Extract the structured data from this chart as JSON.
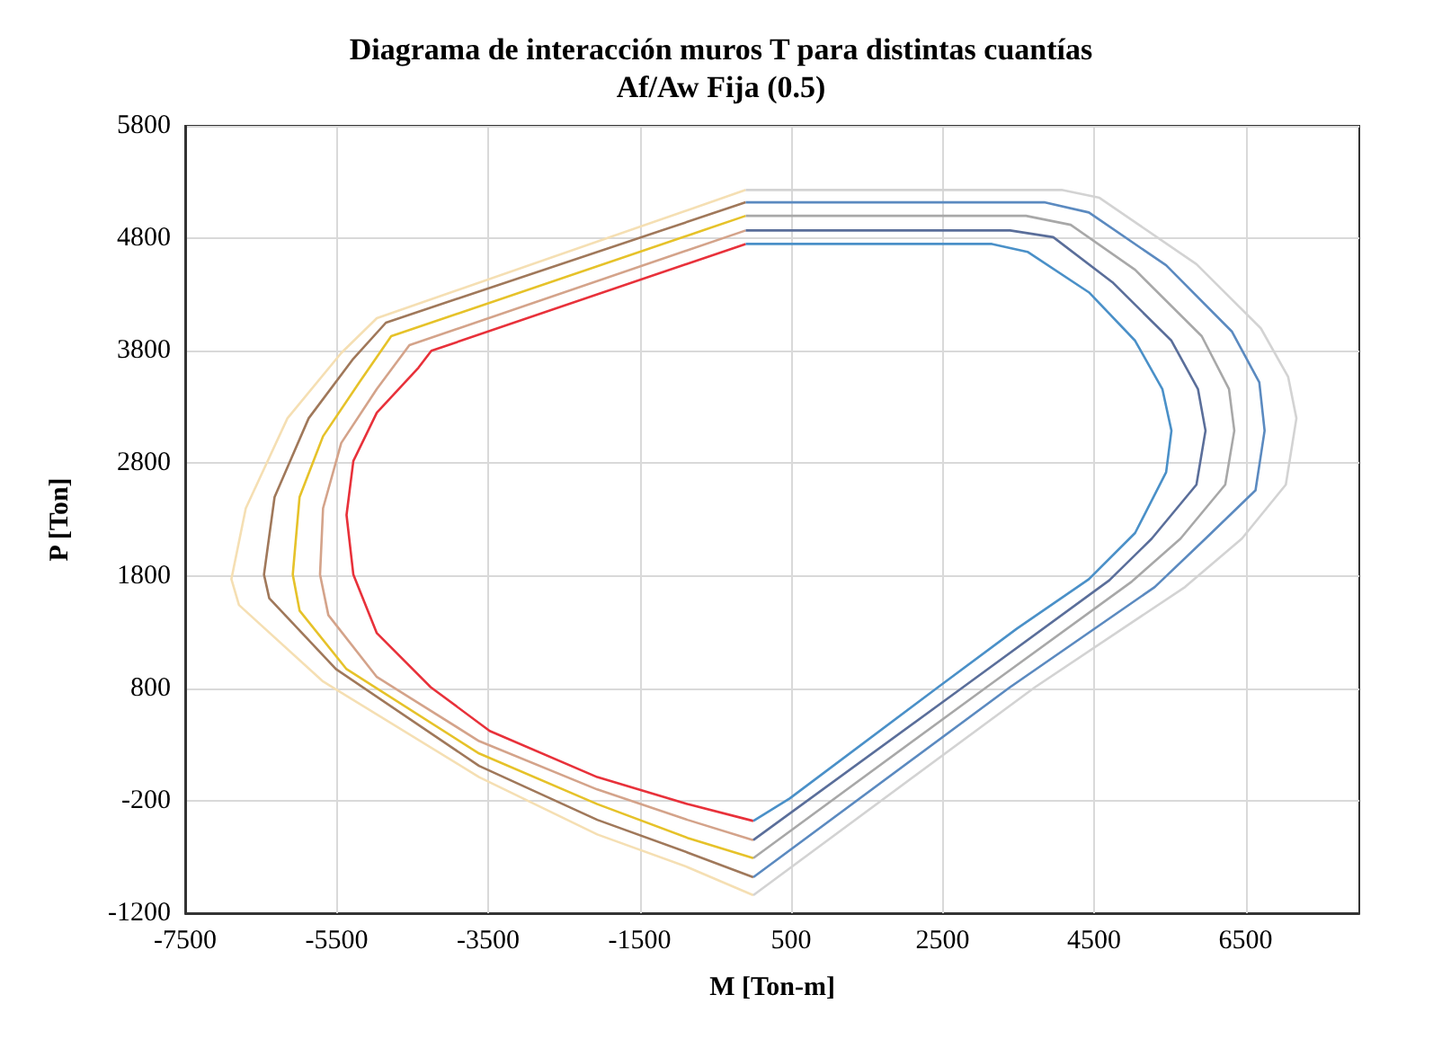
{
  "chart_data": {
    "type": "line",
    "title": "Diagrama de interacción muros T para distintas cuantías",
    "subtitle": "Af/Aw Fija (0.5)",
    "xlabel": "M [Ton-m]",
    "ylabel": "P [Ton]",
    "xlim": [
      -7500,
      8000
    ],
    "xticks": [
      -7500,
      -5500,
      -3500,
      -1500,
      500,
      2500,
      4500,
      6500
    ],
    "ylim": [
      -1200,
      5800
    ],
    "yticks": [
      -1200,
      -200,
      800,
      1800,
      2800,
      3800,
      4800,
      5800
    ],
    "grid": true,
    "marker": "none",
    "line_style": "solid",
    "series": [
      {
        "color": "#e8313a",
        "x": [
          -100,
          -4250,
          -4420,
          -4970,
          -5280,
          -5370,
          -5280,
          -4970,
          -4260,
          -3480,
          -2060,
          -870,
          0
        ],
        "values": [
          4750,
          3800,
          3650,
          3250,
          2820,
          2340,
          1810,
          1290,
          810,
          420,
          10,
          -230,
          -380
        ]
      },
      {
        "color": "#d4a38a",
        "x": [
          -100,
          -4540,
          -4970,
          -5440,
          -5680,
          -5720,
          -5610,
          -4970,
          -3620,
          -2060,
          -870,
          0
        ],
        "values": [
          4870,
          3850,
          3460,
          2980,
          2400,
          1810,
          1450,
          900,
          330,
          -100,
          -370,
          -550
        ]
      },
      {
        "color": "#e6c229",
        "x": [
          -100,
          -4780,
          -5200,
          -5680,
          -5990,
          -6080,
          -5990,
          -5370,
          -3620,
          -2060,
          -870,
          0
        ],
        "values": [
          5000,
          3930,
          3520,
          3040,
          2500,
          1810,
          1490,
          970,
          220,
          -230,
          -530,
          -710
        ]
      },
      {
        "color": "#a0785a",
        "x": [
          -100,
          -4850,
          -5280,
          -5870,
          -6320,
          -6460,
          -6390,
          -5510,
          -3620,
          -2060,
          -870,
          0
        ],
        "values": [
          5120,
          4050,
          3730,
          3200,
          2500,
          1810,
          1600,
          970,
          110,
          -370,
          -660,
          -880
        ]
      },
      {
        "color": "#f5dfb3",
        "x": [
          -100,
          -4970,
          -5440,
          -6150,
          -6700,
          -6890,
          -6790,
          -5680,
          -3620,
          -2060,
          -870,
          0
        ],
        "values": [
          5230,
          4090,
          3780,
          3200,
          2400,
          1770,
          1540,
          860,
          10,
          -500,
          -790,
          -1040
        ]
      },
      {
        "color": "#4a90c8",
        "x": [
          -100,
          3150,
          3620,
          4430,
          5040,
          5400,
          5520,
          5450,
          5040,
          4430,
          3480,
          2440,
          480,
          0
        ],
        "values": [
          4750,
          4750,
          4680,
          4320,
          3890,
          3460,
          3090,
          2720,
          2180,
          1770,
          1330,
          810,
          -180,
          -380
        ]
      },
      {
        "color": "#5a6e9a",
        "x": [
          -100,
          3390,
          3960,
          4740,
          5520,
          5870,
          5970,
          5850,
          5260,
          4700,
          2770,
          0
        ],
        "values": [
          4870,
          4870,
          4810,
          4410,
          3890,
          3460,
          3090,
          2610,
          2130,
          1760,
          810,
          -550
        ]
      },
      {
        "color": "#a8a8a8",
        "x": [
          -100,
          3600,
          4190,
          5040,
          5920,
          6280,
          6350,
          6230,
          5640,
          5000,
          3080,
          0
        ],
        "values": [
          5000,
          5000,
          4920,
          4520,
          3930,
          3460,
          3090,
          2610,
          2130,
          1750,
          810,
          -710
        ]
      },
      {
        "color": "#5b8ac0",
        "x": [
          -100,
          3840,
          4430,
          5450,
          6320,
          6680,
          6750,
          6630,
          5970,
          5300,
          3390,
          0
        ],
        "values": [
          5120,
          5120,
          5030,
          4560,
          3970,
          3520,
          3090,
          2560,
          2130,
          1700,
          810,
          -880
        ]
      },
      {
        "color": "#d3d3d3",
        "x": [
          -100,
          4070,
          4570,
          5850,
          6700,
          7060,
          7170,
          7030,
          6450,
          5700,
          3720,
          0
        ],
        "values": [
          5230,
          5230,
          5160,
          4570,
          4000,
          3570,
          3200,
          2610,
          2130,
          1700,
          810,
          -1040
        ]
      }
    ]
  }
}
